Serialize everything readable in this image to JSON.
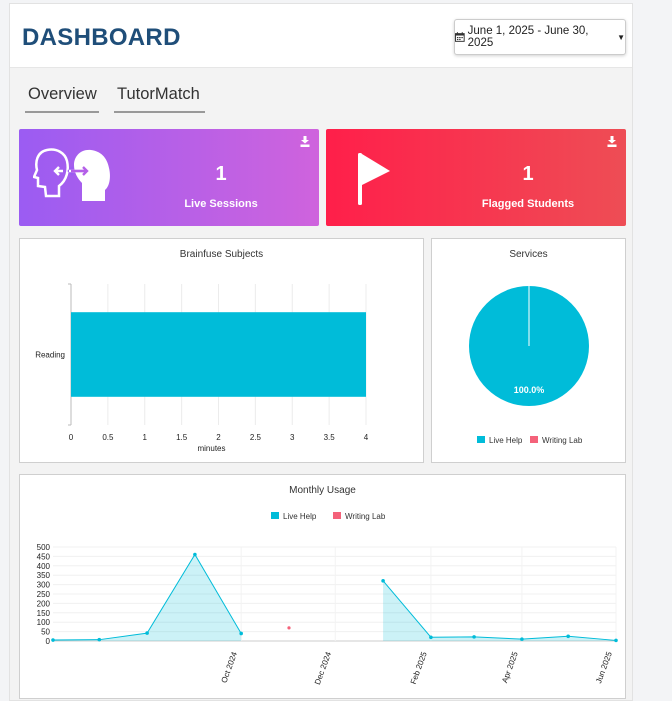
{
  "header": {
    "title": "DASHBOARD",
    "date_range": "June 1, 2025 - June 30, 2025"
  },
  "tabs": [
    {
      "label": "Overview"
    },
    {
      "label": "TutorMatch"
    }
  ],
  "cards": [
    {
      "value": "1",
      "label": "Live Sessions",
      "color_start": "#9b5cf2",
      "color_end": "#cf63dd",
      "icon": "people-exchange-icon"
    },
    {
      "value": "1",
      "label": "Flagged Students",
      "color_start": "#ff1f4a",
      "color_end": "#ee4d55",
      "icon": "flag-icon"
    }
  ],
  "chart_data": [
    {
      "type": "bar",
      "orientation": "horizontal",
      "title": "Brainfuse Subjects",
      "categories": [
        "Reading"
      ],
      "values": [
        4
      ],
      "xlabel": "minutes",
      "xticks": [
        "0",
        "0.5",
        "1",
        "1.5",
        "2",
        "2.5",
        "3",
        "3.5",
        "4"
      ],
      "xlim": [
        0,
        4
      ],
      "color": "#00bcd9"
    },
    {
      "type": "pie",
      "title": "Services",
      "slices": [
        {
          "label": "Live Help",
          "value": 100.0,
          "color": "#00bcd9"
        },
        {
          "label": "Writing Lab",
          "value": 0.0,
          "color": "#f4627a"
        }
      ],
      "slice_label": "100.0%",
      "legend": "bottom"
    },
    {
      "type": "area",
      "title": "Monthly Usage",
      "legend": "top",
      "series_names": [
        "Live Help",
        "Writing Lab"
      ],
      "series_colors": [
        "#00bcd9",
        "#f4627a"
      ],
      "yticks": [
        "0",
        "50",
        "100",
        "150",
        "200",
        "250",
        "300",
        "350",
        "400",
        "450",
        "500"
      ],
      "ylim": [
        0,
        500
      ],
      "xticks": [
        "Oct 2024",
        "Dec 2024",
        "Feb 2025",
        "Apr 2025",
        "Jun 2025"
      ],
      "segments": [
        [
          [
            "2024-06-01",
            5
          ],
          [
            "2024-07-01",
            7
          ],
          [
            "2024-08-01",
            42
          ],
          [
            "2024-09-01",
            460
          ],
          [
            "2024-10-01",
            40
          ]
        ],
        [
          [
            "2025-01-01",
            320
          ],
          [
            "2025-02-01",
            20
          ],
          [
            "2025-03-01",
            22
          ],
          [
            "2025-04-01",
            10
          ],
          [
            "2025-05-01",
            25
          ],
          [
            "2025-06-01",
            3
          ]
        ]
      ],
      "writing_lab_points": [
        [
          "2024-11-01",
          70
        ]
      ]
    }
  ]
}
